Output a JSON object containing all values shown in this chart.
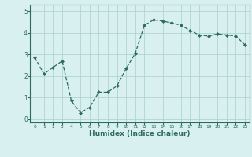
{
  "x": [
    0,
    1,
    2,
    3,
    4,
    5,
    6,
    7,
    8,
    9,
    10,
    11,
    12,
    13,
    14,
    15,
    16,
    17,
    18,
    19,
    20,
    21,
    22,
    23
  ],
  "y": [
    2.85,
    2.1,
    2.4,
    2.7,
    0.85,
    0.3,
    0.55,
    1.25,
    1.25,
    1.55,
    2.35,
    3.05,
    4.35,
    4.6,
    4.55,
    4.45,
    4.35,
    4.1,
    3.9,
    3.85,
    3.95,
    3.9,
    3.85,
    3.45
  ],
  "xlabel": "Humidex (Indice chaleur)",
  "line_color": "#2d6b5e",
  "bg_color": "#d9f0f0",
  "grid_color": "#a8d0cc",
  "text_color": "#2d6b5e",
  "ylim": [
    -0.15,
    5.3
  ],
  "xlim": [
    -0.5,
    23.5
  ],
  "yticks": [
    0,
    1,
    2,
    3,
    4,
    5
  ],
  "xticks": [
    0,
    1,
    2,
    3,
    4,
    5,
    6,
    7,
    8,
    9,
    10,
    11,
    12,
    13,
    14,
    15,
    16,
    17,
    18,
    19,
    20,
    21,
    22,
    23
  ],
  "xtick_labels": [
    "0",
    "1",
    "2",
    "3",
    "4",
    "5",
    "6",
    "7",
    "8",
    "9",
    "10",
    "11",
    "12",
    "13",
    "14",
    "15",
    "16",
    "17",
    "18",
    "19",
    "20",
    "21",
    "22",
    "23"
  ]
}
